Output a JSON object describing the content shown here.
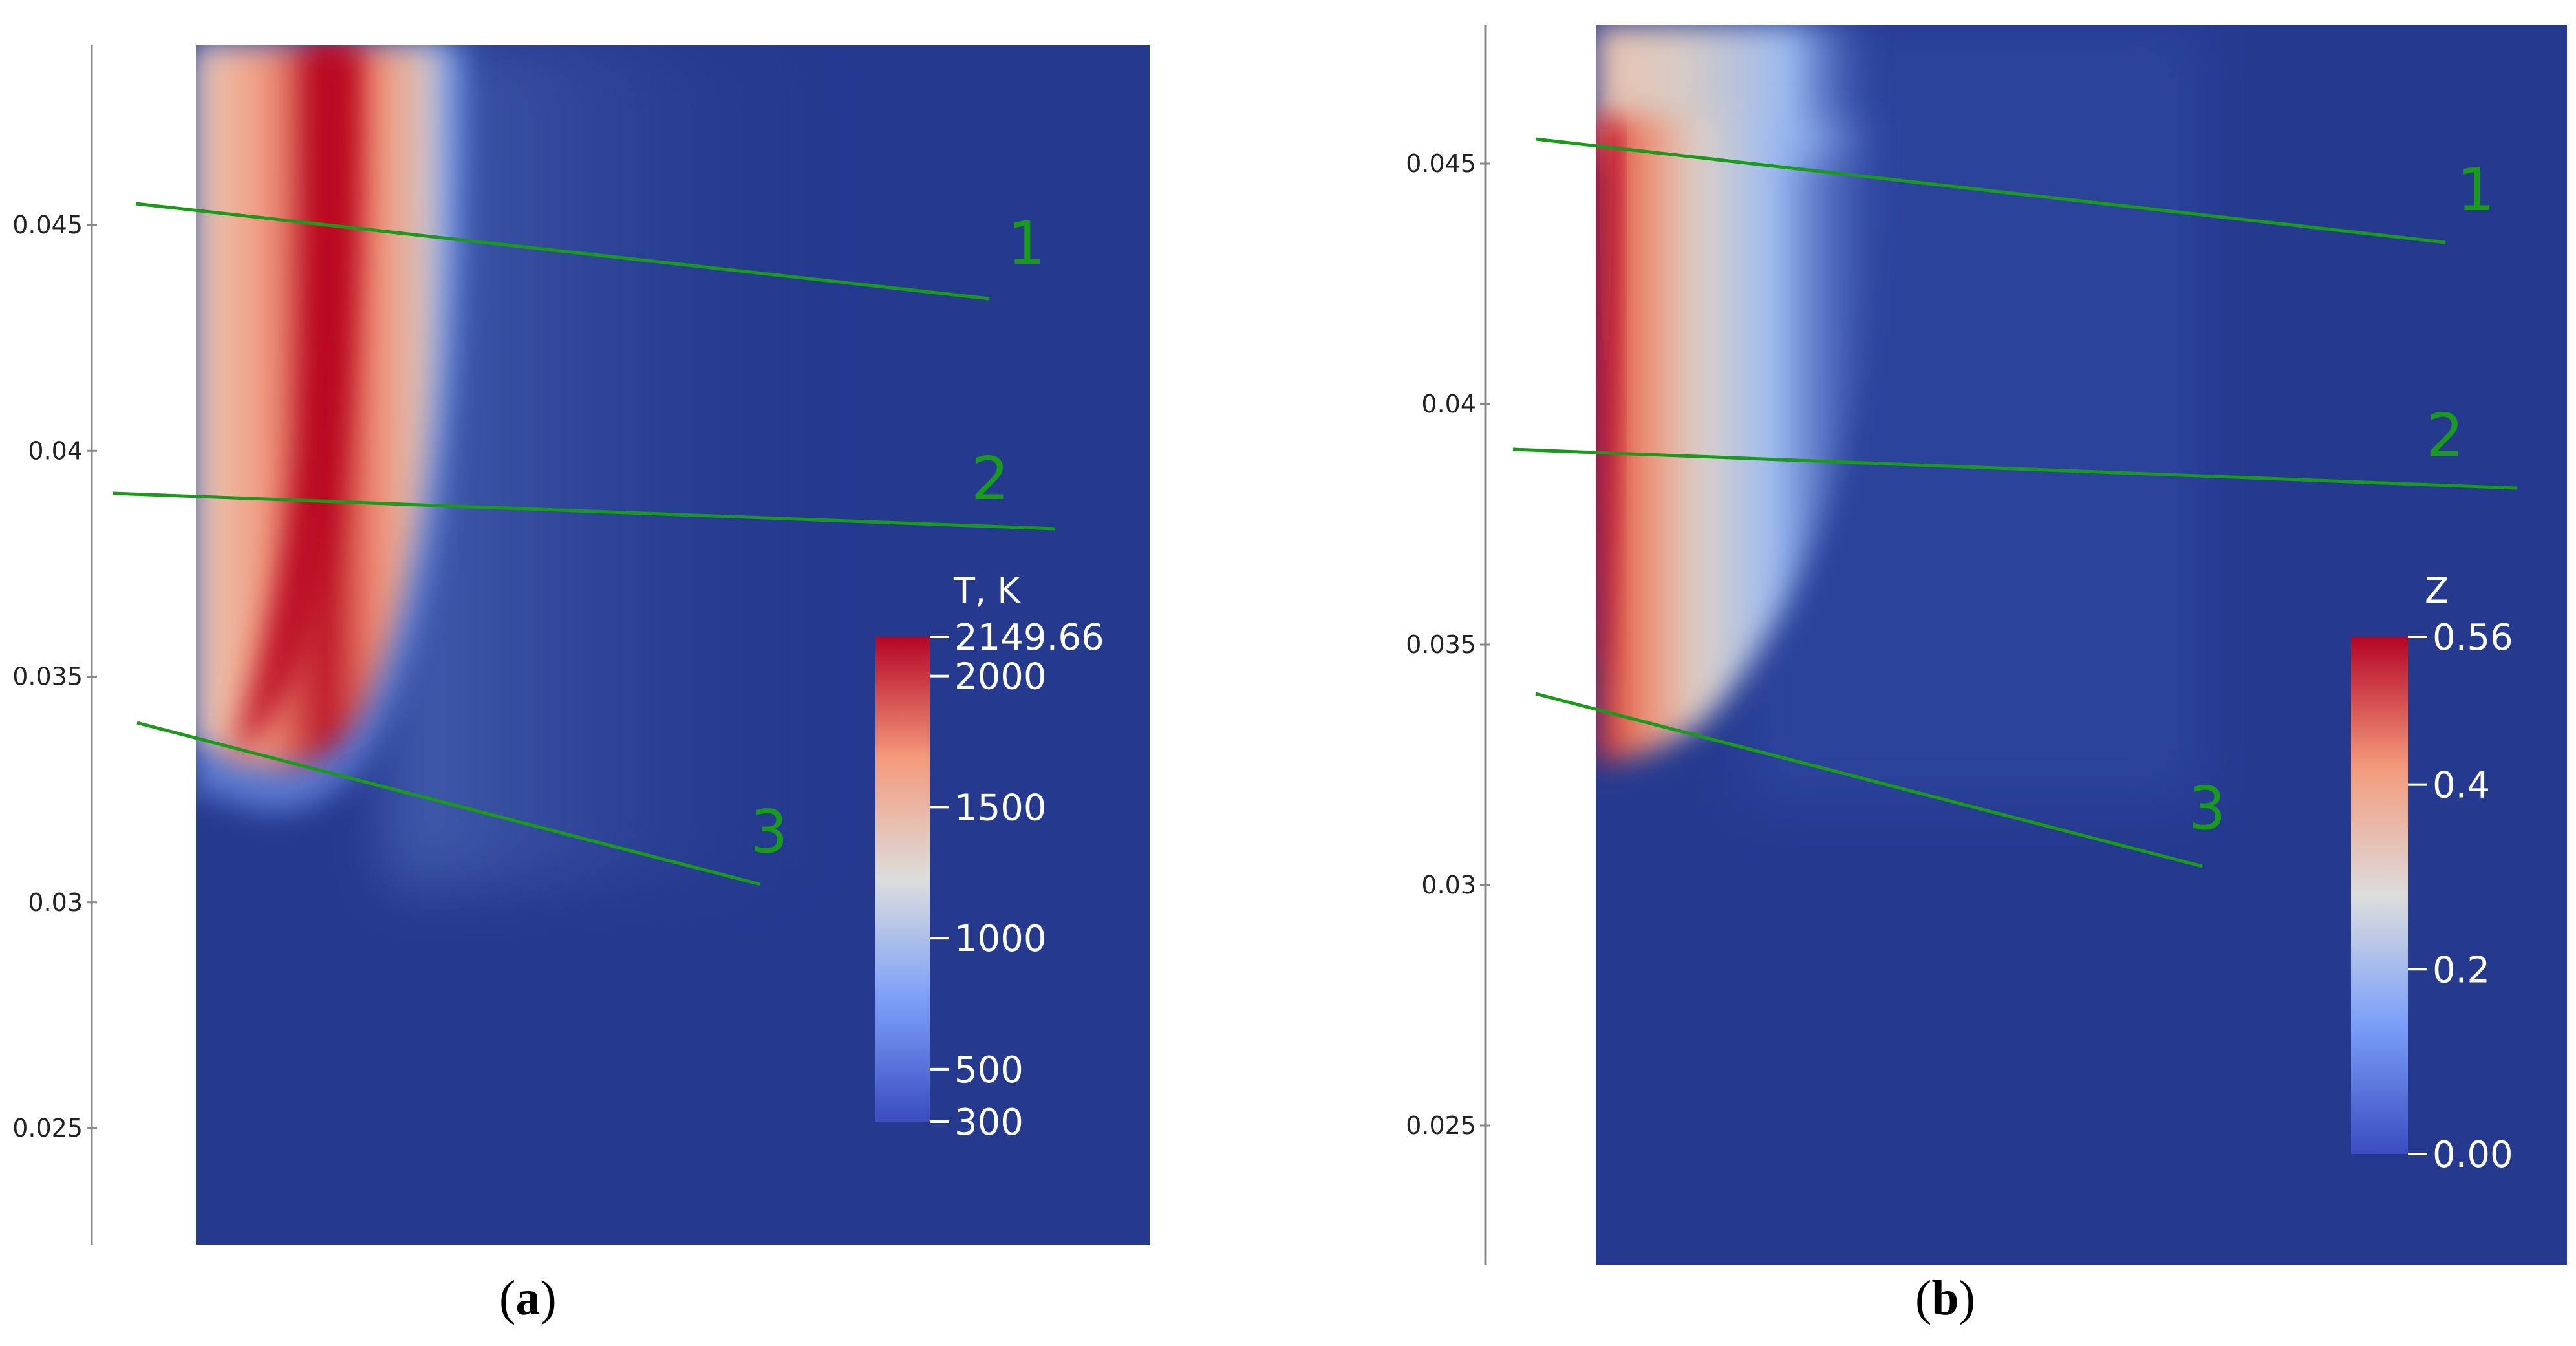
{
  "panels": [
    {
      "id": "a",
      "label_open": "(",
      "label_letter": "a",
      "label_close": ")",
      "y_axis": {
        "ticks": [
          {
            "value": 0.045,
            "label": "0.045"
          },
          {
            "value": 0.04,
            "label": "0.04"
          },
          {
            "value": 0.035,
            "label": "0.035"
          },
          {
            "value": 0.03,
            "label": "0.03"
          },
          {
            "value": 0.025,
            "label": "0.025"
          }
        ]
      },
      "colorbar": {
        "title": "T, K",
        "min": 300,
        "max": 2149.66,
        "ticks": [
          {
            "value": 2149.66,
            "label": "2149.66"
          },
          {
            "value": 2000,
            "label": "2000"
          },
          {
            "value": 1500,
            "label": "1500"
          },
          {
            "value": 1000,
            "label": "1000"
          },
          {
            "value": 500,
            "label": "500"
          },
          {
            "value": 300,
            "label": "300"
          }
        ]
      },
      "lines": [
        {
          "label": "1"
        },
        {
          "label": "2"
        },
        {
          "label": "3"
        }
      ]
    },
    {
      "id": "b",
      "label_open": "(",
      "label_letter": "b",
      "label_close": ")",
      "y_axis": {
        "ticks": [
          {
            "value": 0.045,
            "label": "0.045"
          },
          {
            "value": 0.04,
            "label": "0.04"
          },
          {
            "value": 0.035,
            "label": "0.035"
          },
          {
            "value": 0.03,
            "label": "0.03"
          },
          {
            "value": 0.025,
            "label": "0.025"
          }
        ]
      },
      "colorbar": {
        "title": "Z",
        "min": 0,
        "max": 0.56,
        "ticks": [
          {
            "value": 0.56,
            "label": "0.56"
          },
          {
            "value": 0.4,
            "label": "0.4"
          },
          {
            "value": 0.2,
            "label": "0.2"
          },
          {
            "value": 0,
            "label": "0.00"
          }
        ]
      },
      "lines": [
        {
          "label": "1"
        },
        {
          "label": "2"
        },
        {
          "label": "3"
        }
      ]
    }
  ],
  "chart_data": [
    {
      "type": "heatmap",
      "field": "T, K",
      "value_range": [
        300,
        2149.66
      ],
      "y_ticks": [
        0.025,
        0.03,
        0.035,
        0.04,
        0.045
      ],
      "grid": false,
      "legend": "colorbar right",
      "annotated_lines": [
        "1",
        "2",
        "3"
      ]
    },
    {
      "type": "heatmap",
      "field": "Z",
      "value_range": [
        0,
        0.56
      ],
      "y_ticks": [
        0.025,
        0.03,
        0.035,
        0.04,
        0.045
      ],
      "grid": false,
      "legend": "colorbar right",
      "annotated_lines": [
        "1",
        "2",
        "3"
      ]
    }
  ],
  "colors": {
    "background_field": "#253a8f",
    "line": "#1a9a1a",
    "axis": "#888888"
  }
}
